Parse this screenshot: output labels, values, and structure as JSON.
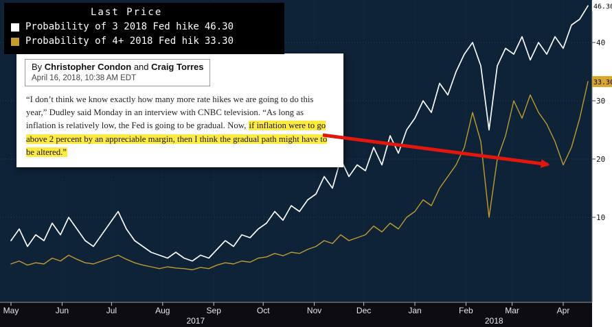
{
  "legend": {
    "title": "Last Price",
    "items": [
      {
        "label": "Probability of 3 2018 Fed hike",
        "value": "46.30",
        "swatch": "#ffffff"
      },
      {
        "label": "Probability of 4+ 2018 Fed hik",
        "value": "33.30",
        "swatch": "#c39c2d"
      }
    ]
  },
  "article": {
    "byline_prefix": "By",
    "authors": [
      "Christopher Condon",
      "Craig Torres"
    ],
    "byline_connector": "and",
    "date": "April 16, 2018, 10:38 AM EDT",
    "quote_segments": [
      {
        "text": "“I don’t think we know exactly how many more rate hikes we are going to do this year,” Dudley said Monday in an interview with CNBC television. “As long as inflation is relatively low, the Fed is going to be gradual. Now, ",
        "highlight": false
      },
      {
        "text": "if inflation were to go above 2 percent by an appreciable margin, then I think the gradual path might have to be altered.”",
        "highlight": true
      }
    ]
  },
  "axis": {
    "right_labels": [
      {
        "text": "40",
        "value": 40
      },
      {
        "text": "30",
        "value": 30
      },
      {
        "text": "20",
        "value": 20
      },
      {
        "text": "10",
        "value": 10
      }
    ],
    "badges": [
      {
        "text": "46.30",
        "value": 46.3,
        "bg": "#ffffff",
        "fg": "#000000"
      },
      {
        "text": "33.30",
        "value": 33.3,
        "bg": "#d8a62a",
        "fg": "#000000"
      }
    ]
  },
  "chart_data": {
    "type": "line",
    "title": "Last Price",
    "x_unit": "days since 2017-05-01",
    "ylim": [
      0,
      50
    ],
    "gridlines_y": [
      10,
      20,
      30,
      40
    ],
    "legend_position": "top-left",
    "x": [
      0,
      5,
      10,
      15,
      20,
      25,
      30,
      35,
      40,
      45,
      50,
      55,
      60,
      65,
      70,
      75,
      80,
      85,
      90,
      95,
      100,
      105,
      110,
      115,
      120,
      125,
      130,
      135,
      140,
      145,
      150,
      155,
      160,
      165,
      170,
      175,
      180,
      185,
      190,
      195,
      200,
      205,
      210,
      215,
      220,
      225,
      230,
      235,
      240,
      245,
      250,
      255,
      260,
      265,
      270,
      275,
      280,
      285,
      290,
      295,
      300,
      305,
      310,
      315,
      320,
      325,
      330,
      335,
      340,
      345,
      350
    ],
    "series": [
      {
        "name": "Probability of 3 2018 Fed hike",
        "color": "#ffffff",
        "last_value": 46.3,
        "values": [
          6,
          8,
          5,
          7,
          6,
          9,
          7,
          10,
          8,
          6,
          5,
          7,
          9,
          11,
          8,
          6,
          5,
          4,
          3.5,
          3,
          4,
          3,
          2.5,
          3.5,
          3,
          4.5,
          6,
          5,
          7,
          6.5,
          8,
          9,
          11,
          9.5,
          12,
          11,
          13,
          14,
          17,
          15,
          20,
          17,
          19,
          18,
          22,
          19,
          24,
          21,
          25,
          27,
          30,
          28,
          33,
          31,
          35,
          38,
          40,
          36,
          25,
          36,
          39,
          38,
          41,
          37,
          40,
          38,
          41,
          39,
          43,
          44,
          46.3
        ]
      },
      {
        "name": "Probability of 4+ 2018 Fed hik",
        "color": "#c39c2d",
        "last_value": 33.3,
        "values": [
          2,
          2.5,
          1.8,
          2.2,
          2,
          3,
          2.5,
          3.5,
          2.8,
          2.2,
          2,
          2.5,
          3,
          3.5,
          2.8,
          2.2,
          1.8,
          1.5,
          1.2,
          1.5,
          1.3,
          1.2,
          1,
          1.4,
          1.2,
          1.8,
          2.2,
          2,
          2.5,
          2.3,
          3,
          3.2,
          3.8,
          3.4,
          4,
          3.8,
          4.5,
          5,
          6,
          5.5,
          7,
          6,
          6.5,
          7,
          8.5,
          7.5,
          9,
          8,
          10,
          11,
          13,
          12,
          15,
          17,
          19,
          22,
          28,
          23,
          10,
          20,
          24,
          30,
          27,
          31,
          28,
          26,
          23,
          19,
          22,
          27,
          33.3
        ]
      }
    ],
    "x_ticks": [
      {
        "label": "May",
        "day": 0
      },
      {
        "label": "Jun",
        "day": 31
      },
      {
        "label": "Jul",
        "day": 61
      },
      {
        "label": "Aug",
        "day": 92
      },
      {
        "label": "Sep",
        "day": 123
      },
      {
        "label": "Oct",
        "day": 153
      },
      {
        "label": "Nov",
        "day": 184
      },
      {
        "label": "Dec",
        "day": 214
      },
      {
        "label": "Jan",
        "day": 245
      },
      {
        "label": "Feb",
        "day": 276
      },
      {
        "label": "Mar",
        "day": 304
      },
      {
        "label": "Apr",
        "day": 335
      }
    ],
    "year_labels": [
      {
        "label": "2017",
        "day": 112
      },
      {
        "label": "2018",
        "day": 293
      }
    ]
  },
  "colors": {
    "chart_bg": "#0e2337",
    "axis_strip_bg": "#0c0c12",
    "white_line": "#ffffff",
    "yellow_line": "#c39c2d",
    "badge_amber": "#d8a62a",
    "arrow_red": "#e3170b",
    "highlight_yellow": "#ffeb3d",
    "legend_bg": "#000000"
  }
}
